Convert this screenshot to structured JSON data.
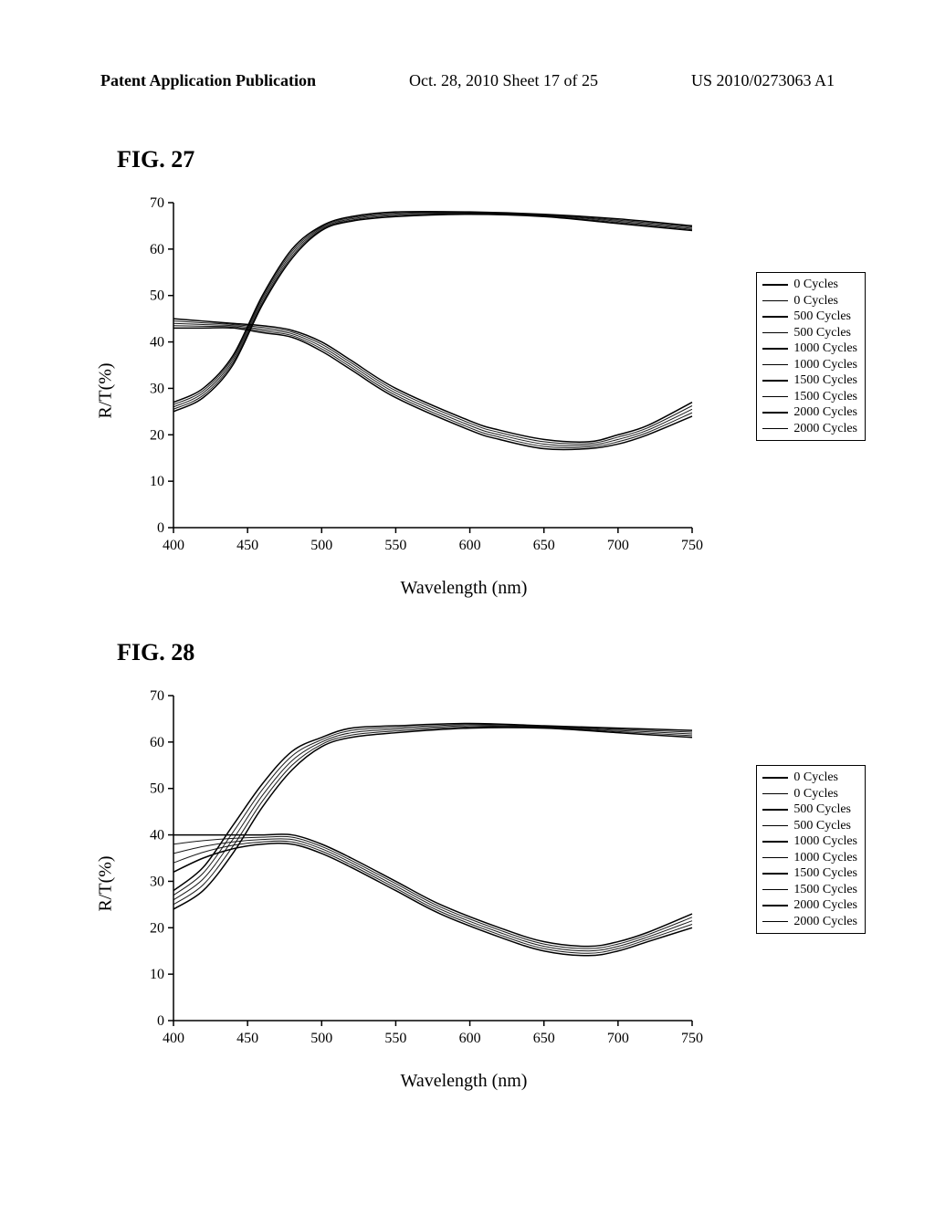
{
  "header": {
    "left": "Patent Application Publication",
    "center": "Oct. 28, 2010  Sheet 17 of 25",
    "right": "US 2010/0273063 A1"
  },
  "figures": [
    {
      "id": "fig27",
      "title": "FIG.  27",
      "chart": {
        "type": "line",
        "xlabel": "Wavelength (nm)",
        "ylabel": "R/T(%)",
        "xlim": [
          400,
          750
        ],
        "ylim": [
          0,
          70
        ],
        "xtick_step": 50,
        "ytick_step": 10,
        "background_color": "#ffffff",
        "axis_color": "#000000",
        "line_color": "#000000",
        "line_width": 1.5,
        "label_fontsize": 20,
        "tick_fontsize": 16,
        "legend_fontsize": 14,
        "legend_items": [
          "0 Cycles",
          "0 Cycles",
          "500 Cycles",
          "500 Cycles",
          "1000 Cycles",
          "1000 Cycles",
          "1500 Cycles",
          "1500 Cycles",
          "2000 Cycles",
          "2000 Cycles"
        ],
        "series_upper": {
          "x": [
            400,
            420,
            440,
            460,
            480,
            500,
            520,
            550,
            600,
            650,
            700,
            750
          ],
          "y_band": [
            [
              25,
              27
            ],
            [
              28,
              30
            ],
            [
              35,
              37
            ],
            [
              48,
              50
            ],
            [
              58,
              60
            ],
            [
              64,
              65
            ],
            [
              66,
              67
            ],
            [
              67,
              68
            ],
            [
              67.5,
              68
            ],
            [
              67,
              67.5
            ],
            [
              65.5,
              66.5
            ],
            [
              64,
              65
            ]
          ]
        },
        "series_lower": {
          "x": [
            400,
            420,
            440,
            460,
            480,
            500,
            520,
            550,
            600,
            620,
            650,
            680,
            700,
            720,
            750
          ],
          "y_band": [
            [
              43,
              45
            ],
            [
              43,
              44.5
            ],
            [
              43,
              44
            ],
            [
              42,
              43.5
            ],
            [
              41,
              42.5
            ],
            [
              38,
              40
            ],
            [
              34,
              36
            ],
            [
              28,
              30
            ],
            [
              21,
              23
            ],
            [
              19,
              21
            ],
            [
              17,
              19
            ],
            [
              17,
              18.5
            ],
            [
              18,
              20
            ],
            [
              20,
              22
            ],
            [
              24,
              27
            ]
          ]
        }
      }
    },
    {
      "id": "fig28",
      "title": "FIG.  28",
      "chart": {
        "type": "line",
        "xlabel": "Wavelength (nm)",
        "ylabel": "R/T(%)",
        "xlim": [
          400,
          750
        ],
        "ylim": [
          0,
          70
        ],
        "xtick_step": 50,
        "ytick_step": 10,
        "background_color": "#ffffff",
        "axis_color": "#000000",
        "line_color": "#000000",
        "line_width": 1.5,
        "label_fontsize": 20,
        "tick_fontsize": 16,
        "legend_fontsize": 14,
        "legend_items": [
          "0 Cycles",
          "0 Cycles",
          "500 Cycles",
          "500 Cycles",
          "1000 Cycles",
          "1000 Cycles",
          "1500 Cycles",
          "1500 Cycles",
          "2000 Cycles",
          "2000 Cycles"
        ],
        "series_upper": {
          "x": [
            400,
            420,
            440,
            460,
            480,
            500,
            520,
            550,
            600,
            650,
            700,
            750
          ],
          "y_band": [
            [
              24,
              28
            ],
            [
              28,
              33
            ],
            [
              36,
              42
            ],
            [
              46,
              51
            ],
            [
              54,
              58
            ],
            [
              59,
              61
            ],
            [
              61,
              63
            ],
            [
              62,
              63.5
            ],
            [
              63,
              64
            ],
            [
              63,
              63.5
            ],
            [
              62,
              63
            ],
            [
              61,
              62.5
            ]
          ]
        },
        "series_lower": {
          "x": [
            400,
            420,
            440,
            460,
            480,
            500,
            520,
            550,
            580,
            620,
            650,
            680,
            700,
            720,
            750
          ],
          "y_band": [
            [
              32,
              40
            ],
            [
              35,
              40
            ],
            [
              37,
              40
            ],
            [
              38,
              40
            ],
            [
              38,
              40
            ],
            [
              36,
              38
            ],
            [
              33,
              35
            ],
            [
              28,
              30
            ],
            [
              23,
              25
            ],
            [
              18,
              20
            ],
            [
              15,
              17
            ],
            [
              14,
              16
            ],
            [
              15,
              17
            ],
            [
              17,
              19
            ],
            [
              20,
              23
            ]
          ]
        }
      }
    }
  ]
}
